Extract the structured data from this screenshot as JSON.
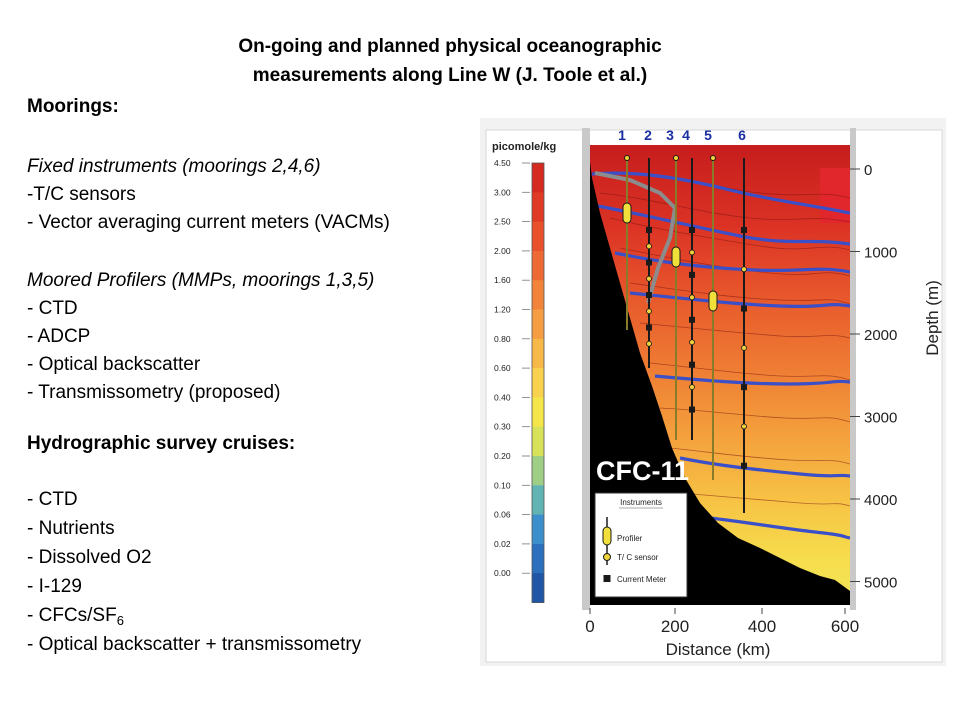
{
  "slide": {
    "title_line1": "On-going and planned physical oceanographic",
    "title_line2": "measurements along Line W (J. Toole et al.)"
  },
  "moorings": {
    "heading": "Moorings:",
    "fixed_title": "Fixed instruments (moorings 2,4,6)",
    "fixed_items": [
      "-T/C sensors",
      "- Vector averaging current meters (VACMs)"
    ],
    "profilers_title": "Moored Profilers (MMPs, moorings 1,3,5)",
    "profiler_items": [
      "- CTD",
      "- ADCP",
      "- Optical backscatter",
      "- Transmissometry (proposed)"
    ]
  },
  "hydro": {
    "heading": "Hydrographic survey cruises:",
    "items": [
      "- CTD",
      "- Nutrients",
      "- Dissolved O2",
      "- I-129"
    ],
    "cfc_prefix": "- CFCs/SF",
    "cfc_sub": "6",
    "last_item": "- Optical backscatter + transmissometry"
  },
  "figure": {
    "unit_label": "picomole/kg",
    "tracer_label": "CFC-11",
    "colorbar_ticks": [
      "4.50",
      "3.00",
      "2.50",
      "2.00",
      "1.60",
      "1.20",
      "0.80",
      "0.60",
      "0.40",
      "0.30",
      "0.20",
      "0.10",
      "0.06",
      "0.02",
      "0.00"
    ],
    "colorbar_colors": [
      "#d42a20",
      "#df3a26",
      "#e8512c",
      "#ee6a34",
      "#f2843a",
      "#f59d42",
      "#f7b84a",
      "#f8d24e",
      "#f4e64a",
      "#d8e15a",
      "#9fcf86",
      "#62b4b4",
      "#3d8fcc",
      "#2c6fbc",
      "#1f56a6"
    ],
    "mooring_numbers": [
      "1",
      "2",
      "3",
      "4",
      "5",
      "6"
    ],
    "depth_ticks": [
      "0",
      "1000",
      "2000",
      "3000",
      "4000",
      "5000"
    ],
    "depth_label": "Depth (m)",
    "distance_ticks": [
      "0",
      "200",
      "400",
      "600"
    ],
    "distance_label": "Distance (km)",
    "legend": {
      "title": "Instruments",
      "profiler": "Profiler",
      "tc_sensor": "T/ C sensor",
      "current_meter": "Current Meter"
    },
    "colors": {
      "mooring_number": "#1a2fa0",
      "isopycnal": "#3a4fc8",
      "seafloor": "#000000",
      "profiler": "#f1df3a",
      "tc_sensor": "#f0d23a"
    }
  }
}
